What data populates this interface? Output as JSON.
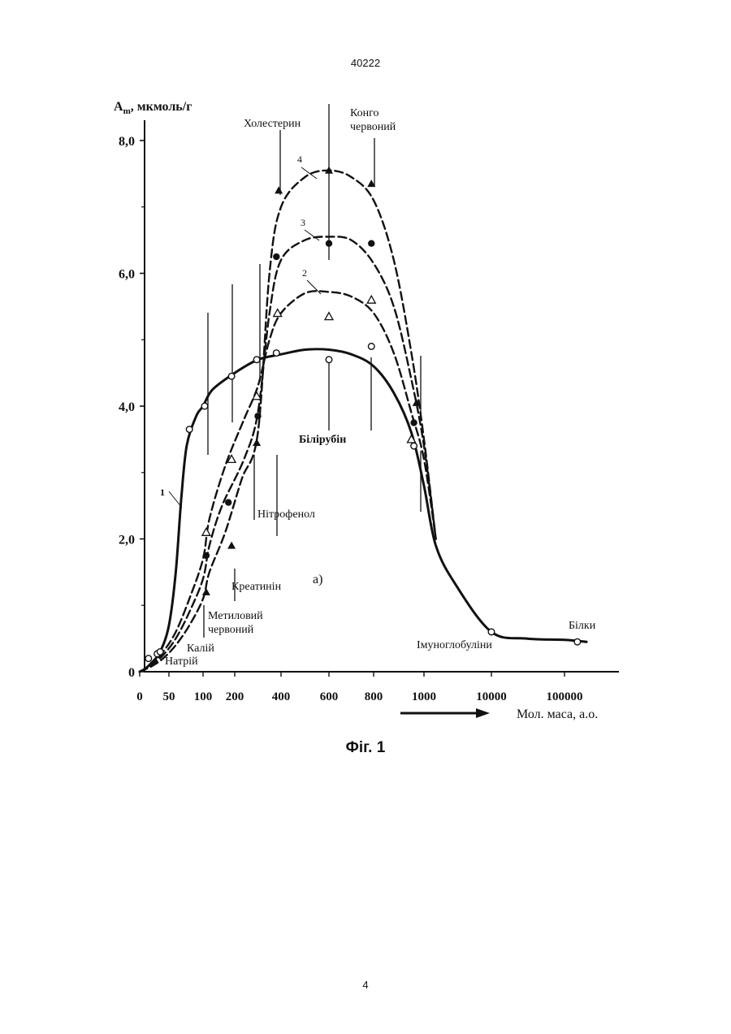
{
  "page": {
    "number_top": "40222",
    "number_bottom": "4",
    "caption": "Фіг. 1"
  },
  "chart_data": {
    "type": "line",
    "ylabel_main": "A",
    "ylabel_sub": "m",
    "ylabel_rest": ", мкмоль/г",
    "xlabel": "Мол. маса, а.о.",
    "ylim": [
      0,
      8.2
    ],
    "y_ticks": [
      {
        "value": 0,
        "label": "0"
      },
      {
        "value": 2,
        "label": "2,0"
      },
      {
        "value": 4,
        "label": "4,0"
      },
      {
        "value": 6,
        "label": "6,0"
      },
      {
        "value": 8,
        "label": "8,0"
      }
    ],
    "x_ticks": [
      "0",
      "50",
      "100",
      "200",
      "400",
      "600",
      "800",
      "1000",
      "10000",
      "100000"
    ],
    "x_axis_note": "categorical (non-linear) molecular mass axis",
    "panel_label": "а)",
    "substances": [
      {
        "label": "Натрій",
        "x": 23
      },
      {
        "label": "Калій",
        "x": 39
      },
      {
        "label": "Метиловий червоний",
        "x": 110
      },
      {
        "label": "Креатинін",
        "x": 180
      },
      {
        "label": "Нітрофенол",
        "x": 300
      },
      {
        "label": "Холестерин",
        "x": 390
      },
      {
        "label": "Білірубін",
        "x": 590
      },
      {
        "label": "Конго червоний",
        "x": 790
      },
      {
        "label": "Імуноглобуліни",
        "x": 10000
      },
      {
        "label": "Білки",
        "x": 150000
      }
    ],
    "series": [
      {
        "name": "1",
        "style": "solid",
        "marker": "circle-open",
        "curve": [
          [
            0,
            0
          ],
          [
            10,
            0.05
          ],
          [
            22,
            0.15
          ],
          [
            35,
            0.3
          ],
          [
            50,
            0.7
          ],
          [
            60,
            1.5
          ],
          [
            68,
            2.6
          ],
          [
            76,
            3.4
          ],
          [
            90,
            3.85
          ],
          [
            100,
            4.0
          ],
          [
            130,
            4.25
          ],
          [
            200,
            4.5
          ],
          [
            300,
            4.7
          ],
          [
            400,
            4.78
          ],
          [
            500,
            4.85
          ],
          [
            600,
            4.85
          ],
          [
            700,
            4.78
          ],
          [
            800,
            4.6
          ],
          [
            880,
            4.2
          ],
          [
            950,
            3.6
          ],
          [
            1000,
            2.8
          ],
          [
            1500,
            1.9
          ],
          [
            3000,
            1.3
          ],
          [
            10000,
            0.6
          ],
          [
            30000,
            0.5
          ],
          [
            100000,
            0.48
          ],
          [
            200000,
            0.45
          ]
        ],
        "points": [
          [
            15,
            0.2
          ],
          [
            30,
            0.27
          ],
          [
            35,
            0.3
          ],
          [
            80,
            3.65
          ],
          [
            105,
            4.0
          ],
          [
            190,
            4.45
          ],
          [
            295,
            4.7
          ],
          [
            380,
            4.8
          ],
          [
            600,
            4.7
          ],
          [
            790,
            4.9
          ],
          [
            960,
            3.4
          ],
          [
            10000,
            0.6
          ],
          [
            150000,
            0.45
          ]
        ]
      },
      {
        "name": "2",
        "style": "dashed",
        "marker": "triangle-open",
        "curve": [
          [
            0,
            0
          ],
          [
            20,
            0.1
          ],
          [
            40,
            0.3
          ],
          [
            60,
            0.6
          ],
          [
            80,
            1.1
          ],
          [
            100,
            1.7
          ],
          [
            120,
            2.3
          ],
          [
            170,
            3.1
          ],
          [
            240,
            3.8
          ],
          [
            300,
            4.3
          ],
          [
            350,
            5.0
          ],
          [
            400,
            5.4
          ],
          [
            500,
            5.7
          ],
          [
            600,
            5.72
          ],
          [
            700,
            5.65
          ],
          [
            800,
            5.4
          ],
          [
            880,
            4.8
          ],
          [
            950,
            3.9
          ],
          [
            1000,
            3.2
          ],
          [
            1500,
            2.0
          ]
        ],
        "points": [
          [
            110,
            2.1
          ],
          [
            190,
            3.2
          ],
          [
            295,
            4.15
          ],
          [
            385,
            5.4
          ],
          [
            600,
            5.35
          ],
          [
            790,
            5.6
          ],
          [
            950,
            3.5
          ]
        ]
      },
      {
        "name": "3",
        "style": "dashed",
        "marker": "circle-filled",
        "curve": [
          [
            0,
            0
          ],
          [
            20,
            0.1
          ],
          [
            40,
            0.25
          ],
          [
            60,
            0.5
          ],
          [
            80,
            0.9
          ],
          [
            100,
            1.4
          ],
          [
            120,
            1.9
          ],
          [
            160,
            2.5
          ],
          [
            240,
            3.2
          ],
          [
            300,
            3.9
          ],
          [
            350,
            5.4
          ],
          [
            400,
            6.2
          ],
          [
            500,
            6.5
          ],
          [
            600,
            6.55
          ],
          [
            700,
            6.5
          ],
          [
            800,
            6.15
          ],
          [
            880,
            5.5
          ],
          [
            950,
            4.4
          ],
          [
            1000,
            3.4
          ],
          [
            1500,
            2.0
          ]
        ],
        "points": [
          [
            110,
            1.75
          ],
          [
            180,
            2.55
          ],
          [
            300,
            3.85
          ],
          [
            380,
            6.25
          ],
          [
            600,
            6.45
          ],
          [
            790,
            6.45
          ],
          [
            960,
            3.75
          ]
        ]
      },
      {
        "name": "4",
        "style": "dashed",
        "marker": "triangle-filled",
        "curve": [
          [
            0,
            0
          ],
          [
            20,
            0.08
          ],
          [
            40,
            0.2
          ],
          [
            60,
            0.4
          ],
          [
            80,
            0.7
          ],
          [
            100,
            1.1
          ],
          [
            120,
            1.5
          ],
          [
            170,
            2.1
          ],
          [
            230,
            2.9
          ],
          [
            300,
            3.6
          ],
          [
            350,
            6.0
          ],
          [
            400,
            7.0
          ],
          [
            500,
            7.45
          ],
          [
            600,
            7.55
          ],
          [
            700,
            7.45
          ],
          [
            800,
            7.1
          ],
          [
            880,
            6.2
          ],
          [
            950,
            4.8
          ],
          [
            1000,
            3.5
          ],
          [
            1500,
            2.0
          ]
        ],
        "points": [
          [
            110,
            1.2
          ],
          [
            190,
            1.9
          ],
          [
            295,
            3.45
          ],
          [
            390,
            7.25
          ],
          [
            600,
            7.55
          ],
          [
            790,
            7.35
          ],
          [
            970,
            4.05
          ]
        ]
      }
    ]
  }
}
